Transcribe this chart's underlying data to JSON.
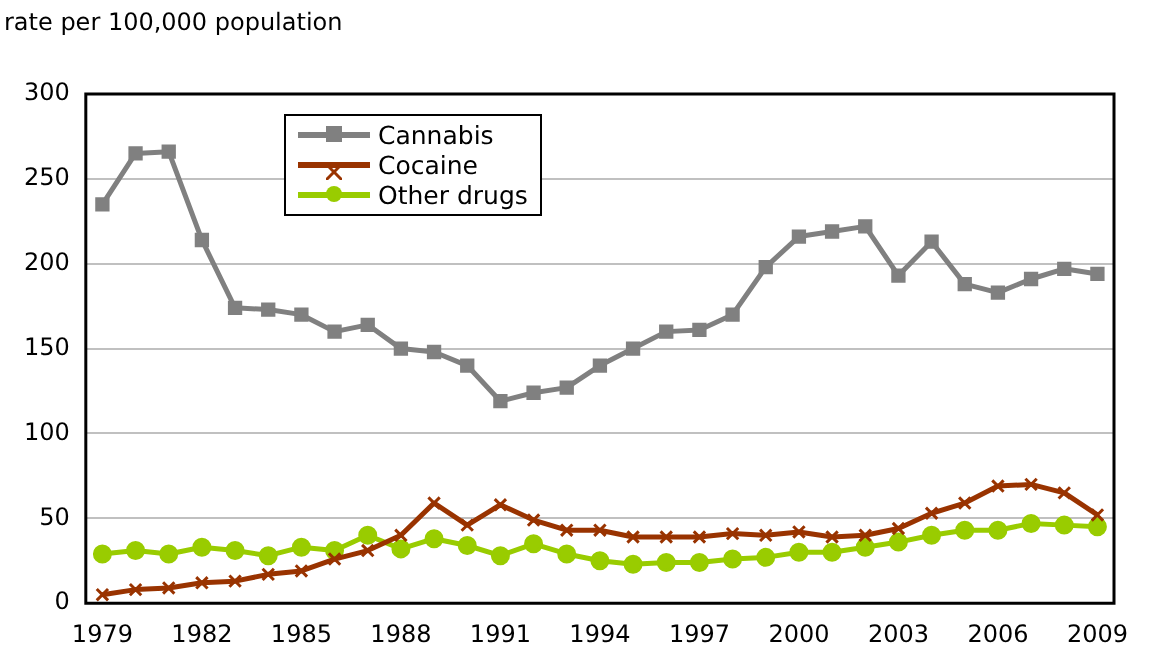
{
  "chart_data": {
    "type": "line",
    "ylabel": "rate per 100,000 population",
    "categories": [
      "1979",
      null,
      null,
      "1982",
      null,
      null,
      "1985",
      null,
      null,
      "1988",
      null,
      null,
      "1991",
      null,
      null,
      "1994",
      null,
      null,
      "1997",
      null,
      null,
      "2000",
      null,
      null,
      "2003",
      null,
      null,
      "2006",
      null,
      null,
      "2009"
    ],
    "series": [
      {
        "name": "Cannabis",
        "color": "#808080",
        "marker": "square",
        "values": [
          235,
          265,
          266,
          214,
          174,
          173,
          170,
          160,
          164,
          150,
          148,
          140,
          119,
          124,
          127,
          140,
          150,
          160,
          161,
          170,
          198,
          216,
          219,
          222,
          193,
          213,
          188,
          183,
          191,
          197,
          194
        ]
      },
      {
        "name": "Cocaine",
        "color": "#993300",
        "marker": "cross",
        "values": [
          5,
          8,
          9,
          12,
          13,
          17,
          19,
          26,
          31,
          40,
          59,
          46,
          58,
          49,
          43,
          43,
          39,
          39,
          39,
          41,
          40,
          42,
          39,
          40,
          44,
          53,
          59,
          69,
          70,
          65,
          52
        ]
      },
      {
        "name": "Other drugs",
        "color": "#99cc00",
        "marker": "circle",
        "values": [
          29,
          31,
          29,
          33,
          31,
          28,
          33,
          31,
          40,
          32,
          38,
          34,
          28,
          35,
          29,
          25,
          23,
          24,
          24,
          26,
          27,
          30,
          30,
          33,
          36,
          40,
          43,
          43,
          47,
          46,
          45
        ]
      }
    ],
    "ylim": [
      0,
      300
    ],
    "yticks": [
      0,
      50,
      100,
      150,
      200,
      250,
      300
    ],
    "grid": "y",
    "legend": "top left"
  }
}
